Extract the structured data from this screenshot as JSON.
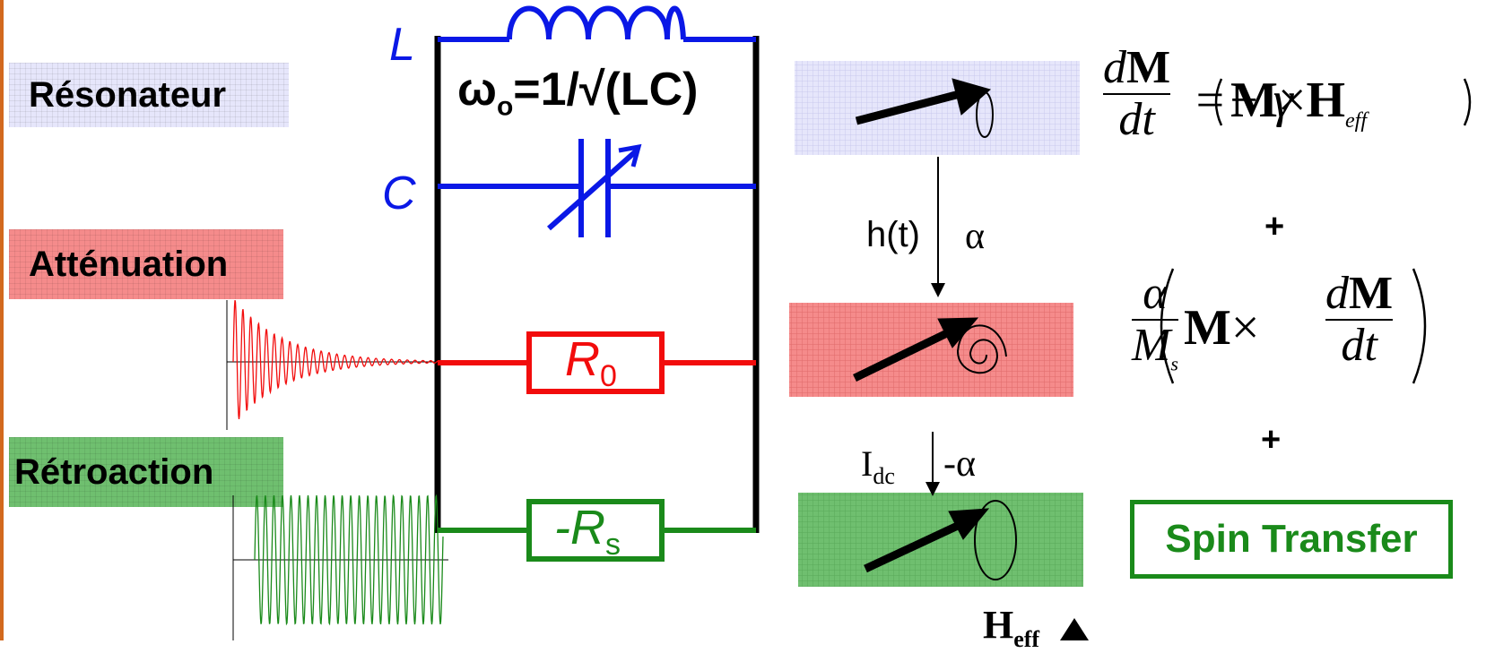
{
  "labels": {
    "resonator": "Résonateur",
    "attenuation": "Atténuation",
    "feedback": "Rétroaction"
  },
  "circuit": {
    "inductor_label": "L",
    "capacitor_label": "C",
    "omega_symbol": "ω",
    "omega_sub": "o",
    "omega_rest": "=1/√(LC)",
    "r0_letter": "R",
    "r0_sub": "0",
    "rs_prefix": "-",
    "rs_letter": "R",
    "rs_sub": "s"
  },
  "magnetization": {
    "ht_label": "h(t)",
    "alpha": "α",
    "idc_main": "I",
    "idc_sub": "dc",
    "minus_alpha": "-α",
    "heff_main": "H",
    "heff_sub": "eff"
  },
  "equation": {
    "dM_d": "d",
    "dM_M": "M",
    "dt": "dt",
    "equals_minus_gamma": "=− γ",
    "cross_term_M": "M",
    "times": "×",
    "H": "H",
    "eff_sub": "eff",
    "plus1": "+",
    "alpha_num": "α",
    "Ms_M": "M",
    "Ms_sub": "s",
    "plus2": "+",
    "spin_transfer": "Spin Transfer"
  },
  "colors": {
    "blue": "#0a18e6",
    "red": "#f20c0c",
    "green": "#1a8a1a",
    "black": "#000000"
  }
}
